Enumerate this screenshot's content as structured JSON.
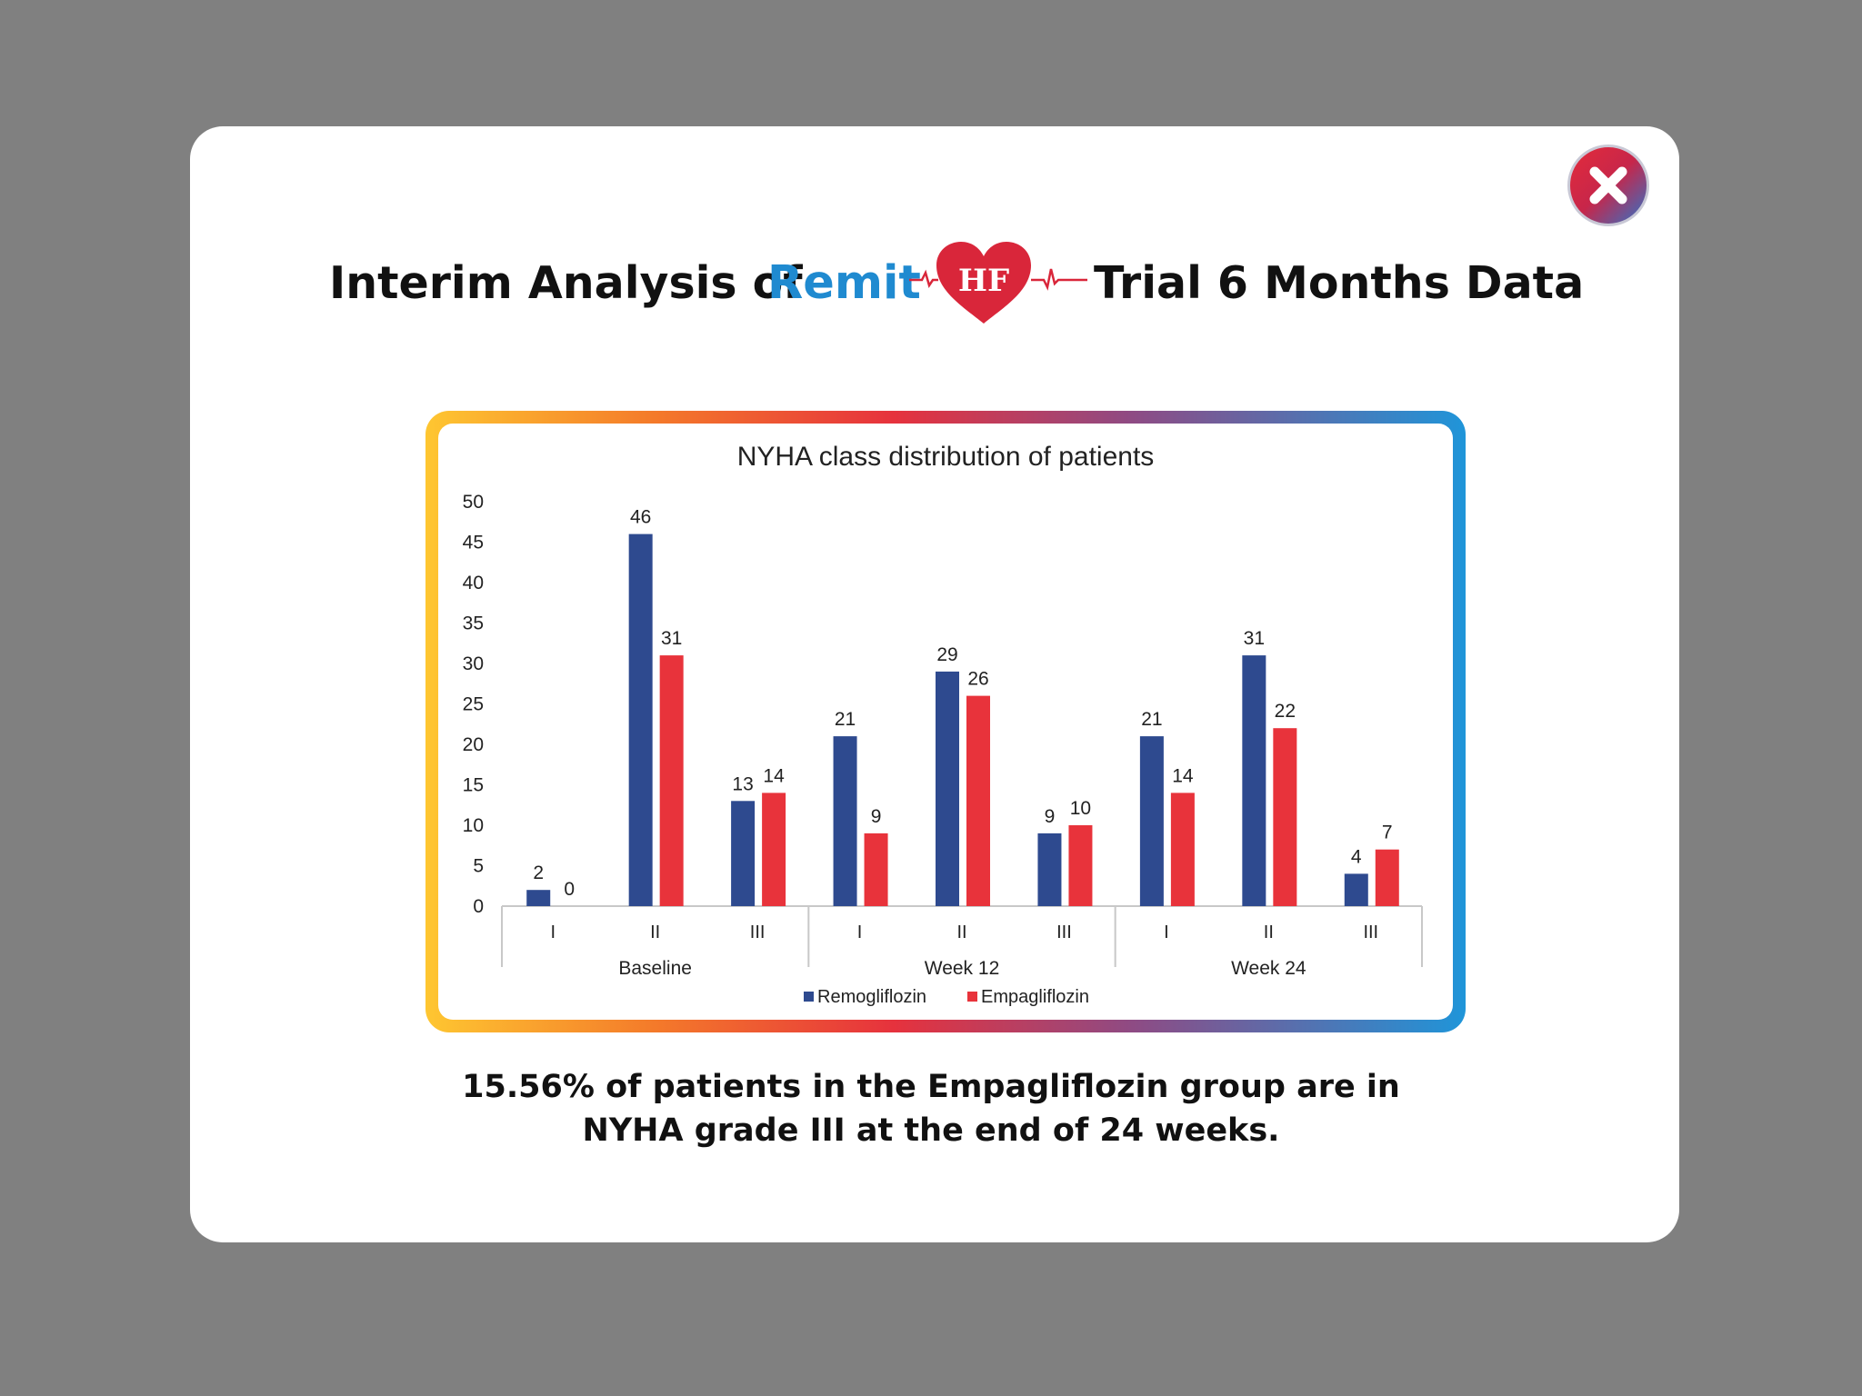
{
  "modal": {
    "close_label": "Close",
    "heading": {
      "prefix": "Interim Analysis of",
      "brand_remit": "Remit",
      "brand_hf": "HF",
      "suffix": "Trial 6 Months Data"
    },
    "caption_line1": "15.56% of patients in the Empagliflozin group are in",
    "caption_line2": "NYHA grade III at the end of 24 weeks."
  },
  "colors": {
    "remogliflozin": "#2e4a8f",
    "empagliflozin": "#e8333b",
    "brand_blue": "#1f8ad0",
    "heart_red": "#d9263a"
  },
  "chart_data": {
    "type": "bar",
    "title": "NYHA class distribution of patients",
    "xlabel": "",
    "ylabel": "",
    "ylim": [
      0,
      50
    ],
    "yticks": [
      0,
      5,
      10,
      15,
      20,
      25,
      30,
      35,
      40,
      45,
      50
    ],
    "grid": false,
    "legend_position": "bottom",
    "groups": [
      "Baseline",
      "Week 12",
      "Week 24"
    ],
    "categories": [
      "I",
      "II",
      "III",
      "I",
      "II",
      "III",
      "I",
      "II",
      "III"
    ],
    "series": [
      {
        "name": "Remogliflozin",
        "values": [
          2,
          46,
          13,
          21,
          29,
          9,
          21,
          31,
          4
        ]
      },
      {
        "name": "Empagliflozin",
        "values": [
          0,
          31,
          14,
          9,
          26,
          10,
          14,
          22,
          7
        ]
      }
    ]
  }
}
